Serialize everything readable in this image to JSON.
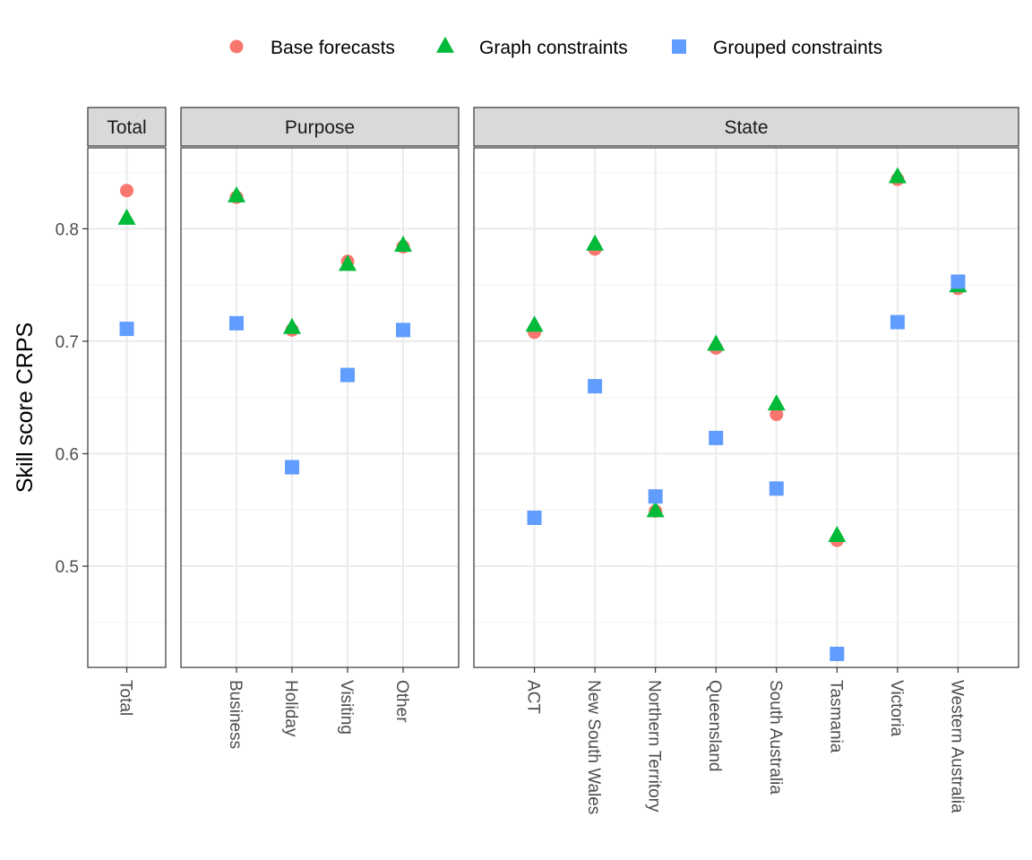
{
  "chart_data": {
    "type": "scatter",
    "ylabel": "Skill score CRPS",
    "ylim": [
      0.41,
      0.872
    ],
    "yticks": [
      0.5,
      0.6,
      0.7,
      0.8
    ],
    "grid": true,
    "legend_position": "top",
    "legend": [
      {
        "name": "Base forecasts",
        "shape": "circle",
        "color": "#F8766D"
      },
      {
        "name": "Graph constraints",
        "shape": "triangle",
        "color": "#00BA38"
      },
      {
        "name": "Grouped constraints",
        "shape": "square",
        "color": "#619CFF"
      }
    ],
    "panels": [
      {
        "title": "Total",
        "categories": [
          "Total"
        ],
        "series": [
          {
            "name": "Base forecasts",
            "values": [
              0.834
            ]
          },
          {
            "name": "Graph constraints",
            "values": [
              0.809
            ]
          },
          {
            "name": "Grouped constraints",
            "values": [
              0.711
            ]
          }
        ]
      },
      {
        "title": "Purpose",
        "categories": [
          "Business",
          "Holiday",
          "Visiting",
          "Other"
        ],
        "series": [
          {
            "name": "Base forecasts",
            "values": [
              0.828,
              0.71,
              0.771,
              0.784
            ]
          },
          {
            "name": "Graph constraints",
            "values": [
              0.829,
              0.712,
              0.768,
              0.785
            ]
          },
          {
            "name": "Grouped constraints",
            "values": [
              0.716,
              0.588,
              0.67,
              0.71
            ]
          }
        ]
      },
      {
        "title": "State",
        "categories": [
          "ACT",
          "New South Wales",
          "Northern Territory",
          "Queensland",
          "South Australia",
          "Tasmania",
          "Victoria",
          "Western Australia"
        ],
        "series": [
          {
            "name": "Base forecasts",
            "values": [
              0.708,
              0.782,
              0.549,
              0.694,
              0.635,
              0.523,
              0.844,
              0.747
            ]
          },
          {
            "name": "Graph constraints",
            "values": [
              0.714,
              0.786,
              0.549,
              0.697,
              0.644,
              0.527,
              0.846,
              0.749
            ]
          },
          {
            "name": "Grouped constraints",
            "values": [
              0.543,
              0.66,
              0.562,
              0.614,
              0.569,
              0.422,
              0.717,
              0.753
            ]
          }
        ]
      }
    ]
  }
}
